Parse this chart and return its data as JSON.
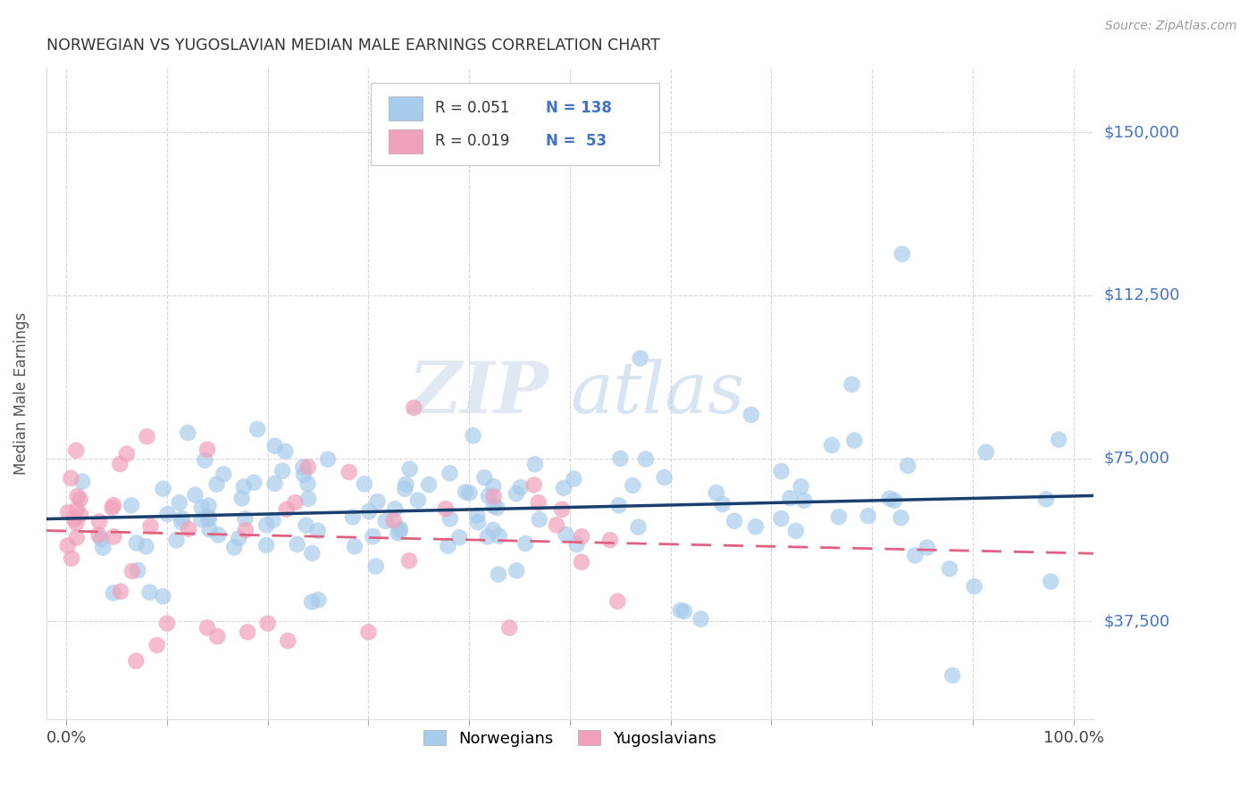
{
  "title": "NORWEGIAN VS YUGOSLAVIAN MEDIAN MALE EARNINGS CORRELATION CHART",
  "source": "Source: ZipAtlas.com",
  "ylabel": "Median Male Earnings",
  "xlim": [
    -0.02,
    1.02
  ],
  "ylim": [
    15000,
    165000
  ],
  "yticks": [
    37500,
    75000,
    112500,
    150000
  ],
  "ytick_labels": [
    "$37,500",
    "$75,000",
    "$112,500",
    "$150,000"
  ],
  "xticks": [
    0,
    0.1,
    0.2,
    0.3,
    0.4,
    0.5,
    0.6,
    0.7,
    0.8,
    0.9,
    1.0
  ],
  "xtick_labels": [
    "0.0%",
    "",
    "",
    "",
    "",
    "",
    "",
    "",
    "",
    "",
    "100.0%"
  ],
  "legend_norwegian_R": "0.051",
  "legend_norwegian_N": "138",
  "legend_yugoslavian_R": "0.019",
  "legend_yugoslavian_N": "53",
  "norwegian_color": "#a8ccec",
  "yugoslavian_color": "#f0a0b8",
  "norwegian_line_color": "#1a3e6e",
  "yugoslavian_line_color": "#e06080",
  "background_color": "#ffffff",
  "grid_color": "#cccccc",
  "title_color": "#333333",
  "axis_label_color": "#555555",
  "ytick_color": "#4472c4",
  "watermark_zip": "ZIP",
  "watermark_atlas": "atlas",
  "norwegian_seed": 42,
  "yugoslavian_seed": 77
}
